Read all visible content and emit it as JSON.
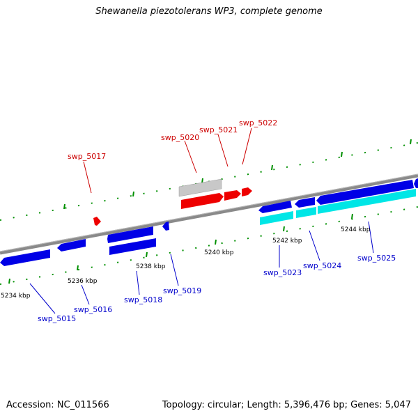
{
  "title": "Shewanella piezotolerans WP3, complete genome",
  "footer": {
    "accession": "Accession: NC_011566",
    "summary": "Topology: circular; Length: 5,396,476 bp; Genes: 5,047"
  },
  "colors": {
    "backbone": "#8a8a8a",
    "forward_gene": "#0000e6",
    "reverse_gene": "#0000e6",
    "forward_cds": "#00e6e6",
    "highlight_gene": "#ee0000",
    "highlight_pseudo": "#c8c8c8",
    "red_label": "#cc0000",
    "blue_label": "#0000cc",
    "tick": "#009000"
  },
  "kbp_labels": [
    "5234 kbp",
    "5236 kbp",
    "5238 kbp",
    "5240 kbp",
    "5242 kbp",
    "5244 kbp"
  ],
  "gene_labels_top": [
    "swp_5017",
    "swp_5020",
    "swp_5021",
    "swp_5022"
  ],
  "gene_labels_bottom": [
    "swp_5015",
    "swp_5016",
    "swp_5018",
    "swp_5019",
    "swp_5023",
    "swp_5024",
    "swp_5025"
  ]
}
